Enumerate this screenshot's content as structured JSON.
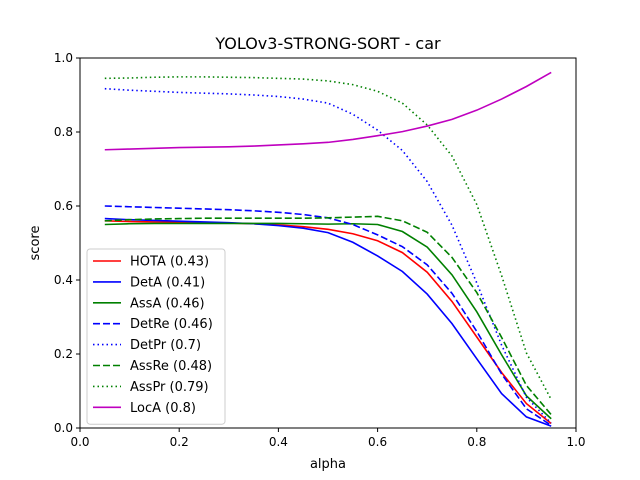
{
  "chart_data": {
    "type": "line",
    "title": "YOLOv3-STRONG-SORT - car",
    "xlabel": "alpha",
    "ylabel": "score",
    "xlim": [
      0.0,
      1.0
    ],
    "ylim": [
      0.0,
      1.0
    ],
    "xticks": [
      "0.0",
      "0.2",
      "0.4",
      "0.6",
      "0.8",
      "1.0"
    ],
    "yticks": [
      "0.0",
      "0.2",
      "0.4",
      "0.6",
      "0.8",
      "1.0"
    ],
    "grid": false,
    "legend_position": "lower-left",
    "x": [
      0.05,
      0.1,
      0.15,
      0.2,
      0.25,
      0.3,
      0.35,
      0.4,
      0.45,
      0.5,
      0.55,
      0.6,
      0.65,
      0.7,
      0.75,
      0.8,
      0.85,
      0.9,
      0.95
    ],
    "series": [
      {
        "name": "HOTA (0.43)",
        "color": "#ff0000",
        "dash": "solid",
        "values": [
          0.56,
          0.558,
          0.557,
          0.556,
          0.555,
          0.554,
          0.552,
          0.549,
          0.544,
          0.537,
          0.525,
          0.506,
          0.474,
          0.421,
          0.342,
          0.246,
          0.15,
          0.066,
          0.012
        ]
      },
      {
        "name": "DetA (0.41)",
        "color": "#0000ff",
        "dash": "solid",
        "values": [
          0.566,
          0.563,
          0.561,
          0.559,
          0.557,
          0.555,
          0.552,
          0.547,
          0.54,
          0.528,
          0.502,
          0.465,
          0.423,
          0.362,
          0.282,
          0.187,
          0.093,
          0.03,
          0.005
        ]
      },
      {
        "name": "AssA (0.46)",
        "color": "#008000",
        "dash": "solid",
        "values": [
          0.55,
          0.552,
          0.553,
          0.553,
          0.553,
          0.553,
          0.553,
          0.553,
          0.552,
          0.551,
          0.552,
          0.55,
          0.531,
          0.489,
          0.414,
          0.314,
          0.198,
          0.087,
          0.025
        ]
      },
      {
        "name": "DetRe (0.46)",
        "color": "#0000ff",
        "dash": "dashed",
        "values": [
          0.6,
          0.598,
          0.596,
          0.594,
          0.592,
          0.59,
          0.587,
          0.583,
          0.577,
          0.568,
          0.55,
          0.522,
          0.49,
          0.441,
          0.364,
          0.261,
          0.146,
          0.052,
          0.007
        ]
      },
      {
        "name": "DetPr (0.7)",
        "color": "#0000ff",
        "dash": "dotted",
        "values": [
          0.917,
          0.913,
          0.91,
          0.907,
          0.905,
          0.903,
          0.9,
          0.896,
          0.889,
          0.878,
          0.848,
          0.805,
          0.75,
          0.666,
          0.548,
          0.392,
          0.224,
          0.083,
          0.013
        ]
      },
      {
        "name": "AssRe (0.48)",
        "color": "#008000",
        "dash": "dashed",
        "values": [
          0.56,
          0.563,
          0.565,
          0.566,
          0.567,
          0.567,
          0.567,
          0.567,
          0.567,
          0.568,
          0.57,
          0.572,
          0.56,
          0.529,
          0.461,
          0.366,
          0.245,
          0.115,
          0.036
        ]
      },
      {
        "name": "AssPr (0.79)",
        "color": "#008000",
        "dash": "dotted",
        "values": [
          0.945,
          0.946,
          0.948,
          0.949,
          0.949,
          0.948,
          0.947,
          0.945,
          0.943,
          0.938,
          0.928,
          0.91,
          0.878,
          0.819,
          0.735,
          0.604,
          0.412,
          0.203,
          0.077
        ]
      },
      {
        "name": "LocA (0.8)",
        "color": "#bf00bf",
        "dash": "solid",
        "values": [
          0.752,
          0.754,
          0.756,
          0.758,
          0.759,
          0.76,
          0.762,
          0.765,
          0.768,
          0.772,
          0.78,
          0.79,
          0.801,
          0.816,
          0.834,
          0.859,
          0.889,
          0.923,
          0.961
        ]
      }
    ]
  }
}
